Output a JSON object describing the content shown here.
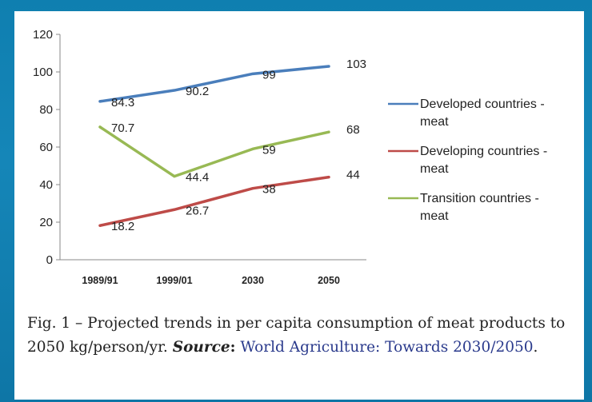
{
  "chart_data": {
    "type": "line",
    "categories": [
      "1989/91",
      "1999/01",
      "2030",
      "2050"
    ],
    "ylim": [
      0,
      120
    ],
    "yticks": [
      0,
      20,
      40,
      60,
      80,
      100,
      120
    ],
    "grid": false,
    "legend_position": "right",
    "series": [
      {
        "name": "Developed countries - meat",
        "values": [
          84.3,
          90.2,
          99,
          103
        ],
        "labels": [
          "84.3",
          "90.2",
          "99",
          "103"
        ],
        "color": "#4a7ebb"
      },
      {
        "name": "Developing countries - meat",
        "values": [
          18.2,
          26.7,
          38,
          44
        ],
        "labels": [
          "18.2",
          "26.7",
          "38",
          "44"
        ],
        "color": "#be4b48"
      },
      {
        "name": "Transition countries - meat",
        "values": [
          70.7,
          44.4,
          59,
          68
        ],
        "labels": [
          "70.7",
          "44.4",
          "59",
          "68"
        ],
        "color": "#98b954"
      }
    ]
  },
  "caption": {
    "fig": "Fig. 1 – Projected trends in per capita consumption of meat products to 2050 kg/person/yr.",
    "source_label": "Source",
    "source_colon": ":",
    "source_ref": "World Agriculture: Towards 2030/2050",
    "end": "."
  }
}
